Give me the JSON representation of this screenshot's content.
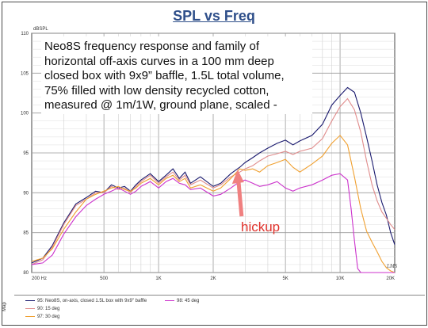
{
  "title": "SPL vs Freq",
  "annotation": "hickup",
  "chart_data": {
    "type": "line",
    "title": "SPL vs Freq",
    "description": "Neo8S frequency response and family of horizontal off-axis curves in a 100 mm deep closed box with 9x9” baffle, 1.5L total volume, 75% filled with low density recycled cotton, measured @ 1m/1W, ground plane, scaled  -",
    "ylabel": "dBSPL",
    "xscale": "log",
    "xlim": [
      200,
      20000
    ],
    "ylim": [
      80,
      110
    ],
    "x_ticks": [
      200,
      500,
      1000,
      2000,
      5000,
      10000,
      20000
    ],
    "x_tick_labels": [
      "200 Hz",
      "500",
      "1K",
      "2K",
      "5K",
      "10K",
      "20K"
    ],
    "y_ticks": [
      80,
      85,
      90,
      95,
      100,
      105,
      110
    ],
    "y_tick_labels": [
      "80",
      "85",
      "90",
      "95",
      "100",
      "105",
      "110"
    ],
    "grid": true,
    "corner_mark": "LMS",
    "legend_side_label": "Map",
    "series": [
      {
        "name": "95: Neo8S, on-axis, closed 1.5L box with 9x9\" baffle",
        "color": "#1a1a6e",
        "points": [
          [
            200,
            81.2
          ],
          [
            230,
            81.8
          ],
          [
            260,
            83.4
          ],
          [
            300,
            86.2
          ],
          [
            350,
            88.6
          ],
          [
            400,
            89.4
          ],
          [
            450,
            90.2
          ],
          [
            500,
            90.0
          ],
          [
            550,
            91.0
          ],
          [
            600,
            90.6
          ],
          [
            650,
            90.8
          ],
          [
            700,
            90.2
          ],
          [
            750,
            91.0
          ],
          [
            800,
            91.6
          ],
          [
            900,
            92.4
          ],
          [
            1000,
            91.4
          ],
          [
            1100,
            92.2
          ],
          [
            1200,
            93.0
          ],
          [
            1300,
            91.8
          ],
          [
            1400,
            92.6
          ],
          [
            1500,
            91.2
          ],
          [
            1700,
            92.0
          ],
          [
            2000,
            90.8
          ],
          [
            2200,
            91.2
          ],
          [
            2500,
            92.4
          ],
          [
            2800,
            93.2
          ],
          [
            3000,
            93.8
          ],
          [
            3300,
            94.4
          ],
          [
            3600,
            95.0
          ],
          [
            4000,
            95.6
          ],
          [
            4500,
            96.2
          ],
          [
            5000,
            96.6
          ],
          [
            5500,
            96.0
          ],
          [
            6000,
            96.5
          ],
          [
            7000,
            97.2
          ],
          [
            8000,
            98.6
          ],
          [
            9000,
            101.0
          ],
          [
            10000,
            102.2
          ],
          [
            11000,
            103.2
          ],
          [
            12000,
            102.6
          ],
          [
            13000,
            100.0
          ],
          [
            14000,
            97.0
          ],
          [
            15000,
            94.0
          ],
          [
            16000,
            91.0
          ],
          [
            17000,
            88.8
          ],
          [
            18000,
            87.2
          ],
          [
            19000,
            85.0
          ],
          [
            20000,
            83.5
          ]
        ]
      },
      {
        "name": "90: 15 deg",
        "color": "#e08c8c",
        "points": [
          [
            200,
            81.0
          ],
          [
            230,
            81.6
          ],
          [
            260,
            83.2
          ],
          [
            300,
            86.0
          ],
          [
            350,
            88.4
          ],
          [
            400,
            89.2
          ],
          [
            450,
            90.0
          ],
          [
            500,
            90.0
          ],
          [
            550,
            90.8
          ],
          [
            600,
            90.4
          ],
          [
            650,
            90.6
          ],
          [
            700,
            90.0
          ],
          [
            750,
            90.8
          ],
          [
            800,
            91.4
          ],
          [
            900,
            92.2
          ],
          [
            1000,
            91.2
          ],
          [
            1100,
            92.0
          ],
          [
            1200,
            92.6
          ],
          [
            1300,
            91.6
          ],
          [
            1400,
            92.2
          ],
          [
            1500,
            91.0
          ],
          [
            1700,
            91.6
          ],
          [
            2000,
            90.6
          ],
          [
            2200,
            91.0
          ],
          [
            2500,
            92.0
          ],
          [
            2800,
            92.6
          ],
          [
            3000,
            93.0
          ],
          [
            3300,
            93.4
          ],
          [
            3600,
            94.0
          ],
          [
            4000,
            94.6
          ],
          [
            4500,
            94.9
          ],
          [
            5000,
            95.2
          ],
          [
            5500,
            94.8
          ],
          [
            6000,
            95.2
          ],
          [
            7000,
            95.6
          ],
          [
            8000,
            96.8
          ],
          [
            9000,
            99.0
          ],
          [
            10000,
            100.8
          ],
          [
            11000,
            101.8
          ],
          [
            12000,
            100.4
          ],
          [
            13000,
            97.6
          ],
          [
            14000,
            94.0
          ],
          [
            15000,
            91.0
          ],
          [
            16000,
            89.0
          ],
          [
            17000,
            87.6
          ],
          [
            18000,
            86.8
          ],
          [
            19000,
            86.0
          ],
          [
            20000,
            85.4
          ]
        ]
      },
      {
        "name": "97: 30 deg",
        "color": "#f0a030",
        "points": [
          [
            200,
            81.4
          ],
          [
            230,
            81.8
          ],
          [
            260,
            83.0
          ],
          [
            300,
            85.4
          ],
          [
            350,
            87.6
          ],
          [
            400,
            89.2
          ],
          [
            450,
            89.8
          ],
          [
            500,
            90.2
          ],
          [
            550,
            90.6
          ],
          [
            600,
            90.8
          ],
          [
            650,
            90.4
          ],
          [
            700,
            90.2
          ],
          [
            750,
            90.6
          ],
          [
            800,
            91.2
          ],
          [
            900,
            91.8
          ],
          [
            1000,
            91.0
          ],
          [
            1100,
            91.8
          ],
          [
            1200,
            92.2
          ],
          [
            1300,
            91.4
          ],
          [
            1400,
            91.8
          ],
          [
            1500,
            90.6
          ],
          [
            1700,
            91.0
          ],
          [
            2000,
            90.2
          ],
          [
            2200,
            90.6
          ],
          [
            2500,
            91.8
          ],
          [
            2800,
            93.0
          ],
          [
            3000,
            92.8
          ],
          [
            3300,
            93.0
          ],
          [
            3600,
            92.6
          ],
          [
            4000,
            93.4
          ],
          [
            4500,
            93.8
          ],
          [
            5000,
            94.2
          ],
          [
            5500,
            93.2
          ],
          [
            6000,
            92.6
          ],
          [
            7000,
            93.6
          ],
          [
            8000,
            94.6
          ],
          [
            9000,
            96.2
          ],
          [
            10000,
            97.2
          ],
          [
            11000,
            96.0
          ],
          [
            12000,
            92.0
          ],
          [
            13000,
            88.0
          ],
          [
            14000,
            85.2
          ],
          [
            15000,
            83.8
          ],
          [
            16000,
            82.6
          ],
          [
            17000,
            81.4
          ],
          [
            18000,
            80.6
          ],
          [
            19000,
            80.2
          ],
          [
            20000,
            80.0
          ]
        ]
      },
      {
        "name": "98: 45 deg",
        "color": "#cc33cc",
        "points": [
          [
            200,
            81.0
          ],
          [
            230,
            81.2
          ],
          [
            260,
            82.2
          ],
          [
            300,
            84.8
          ],
          [
            350,
            87.0
          ],
          [
            400,
            88.4
          ],
          [
            450,
            89.2
          ],
          [
            500,
            89.8
          ],
          [
            550,
            90.2
          ],
          [
            600,
            90.6
          ],
          [
            650,
            90.2
          ],
          [
            700,
            89.8
          ],
          [
            750,
            90.2
          ],
          [
            800,
            90.8
          ],
          [
            900,
            91.4
          ],
          [
            1000,
            90.6
          ],
          [
            1100,
            91.4
          ],
          [
            1200,
            91.8
          ],
          [
            1300,
            91.2
          ],
          [
            1400,
            91.0
          ],
          [
            1500,
            90.4
          ],
          [
            1700,
            90.6
          ],
          [
            2000,
            89.6
          ],
          [
            2200,
            89.8
          ],
          [
            2500,
            90.6
          ],
          [
            2800,
            91.4
          ],
          [
            3000,
            91.6
          ],
          [
            3300,
            91.2
          ],
          [
            3600,
            90.8
          ],
          [
            4000,
            91.0
          ],
          [
            4500,
            91.4
          ],
          [
            5000,
            90.6
          ],
          [
            5500,
            90.2
          ],
          [
            6000,
            90.6
          ],
          [
            7000,
            91.0
          ],
          [
            8000,
            91.6
          ],
          [
            9000,
            92.2
          ],
          [
            10000,
            92.4
          ],
          [
            11000,
            91.6
          ],
          [
            11500,
            88.0
          ],
          [
            12000,
            84.0
          ],
          [
            12500,
            80.5
          ],
          [
            13000,
            80.0
          ],
          [
            14000,
            80.0
          ],
          [
            16000,
            80.0
          ],
          [
            18000,
            80.0
          ],
          [
            20000,
            80.0
          ]
        ]
      }
    ]
  }
}
